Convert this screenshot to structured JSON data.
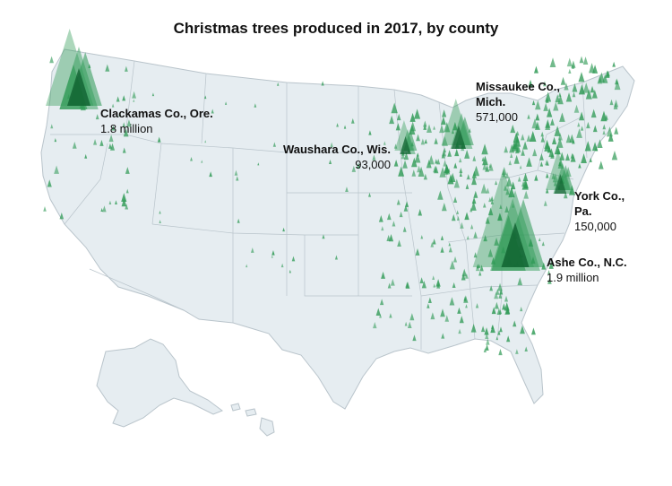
{
  "title": "Christmas trees produced in 2017, by county",
  "colors": {
    "land": "#e6edf1",
    "border": "#b9c4cb",
    "tree": "#2f9a55",
    "tree_dark": "#0b5a2b"
  },
  "icon": "tree-triangle-icon",
  "counties": [
    {
      "id": "clackamas",
      "name_lines": [
        "Clackamas Co., Ore."
      ],
      "value_label": "1.8 million",
      "value": 1800000
    },
    {
      "id": "waushara",
      "name_lines": [
        "Waushara Co., Wis."
      ],
      "value_label": "93,000",
      "value": 93000
    },
    {
      "id": "missaukee",
      "name_lines": [
        "Missaukee Co.,",
        "Mich."
      ],
      "value_label": "571,000",
      "value": 571000
    },
    {
      "id": "york",
      "name_lines": [
        "York Co.,",
        "Pa."
      ],
      "value_label": "150,000",
      "value": 150000
    },
    {
      "id": "ashe",
      "name_lines": [
        "Ashe Co., N.C."
      ],
      "value_label": "1.9 million",
      "value": 1900000
    }
  ]
}
